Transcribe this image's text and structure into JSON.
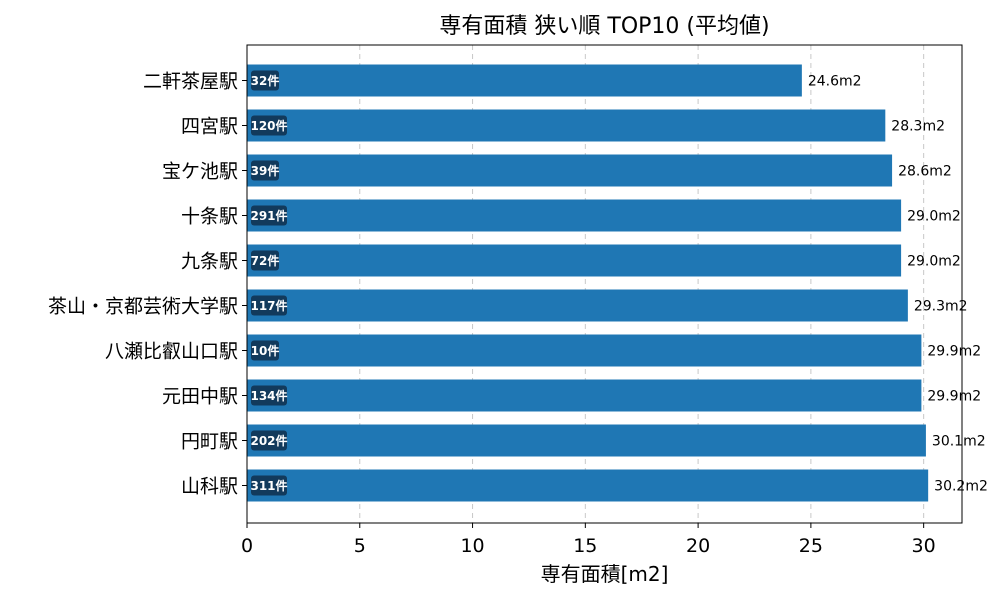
{
  "chart_data": {
    "type": "bar",
    "orientation": "horizontal",
    "title": "専有面積 狭い順 TOP10 (平均値)",
    "xlabel": "専有面積[m2]",
    "ylabel": "",
    "xlim": [
      0,
      31.7
    ],
    "xticks": [
      0,
      5,
      10,
      15,
      20,
      25,
      30
    ],
    "grid": "x-dashed",
    "colors": {
      "bar": "#1f77b4",
      "badge": "#123a5c"
    },
    "categories": [
      "二軒茶屋駅",
      "四宮駅",
      "宝ケ池駅",
      "十条駅",
      "九条駅",
      "茶山・京都芸術大学駅",
      "八瀬比叡山口駅",
      "元田中駅",
      "円町駅",
      "山科駅"
    ],
    "values": [
      24.6,
      28.3,
      28.6,
      29.0,
      29.0,
      29.3,
      29.9,
      29.9,
      30.1,
      30.2
    ],
    "value_labels": [
      "24.6m2",
      "28.3m2",
      "28.6m2",
      "29.0m2",
      "29.0m2",
      "29.3m2",
      "29.9m2",
      "29.9m2",
      "30.1m2",
      "30.2m2"
    ],
    "counts": [
      "32件",
      "120件",
      "39件",
      "291件",
      "72件",
      "117件",
      "10件",
      "134件",
      "202件",
      "311件"
    ]
  }
}
